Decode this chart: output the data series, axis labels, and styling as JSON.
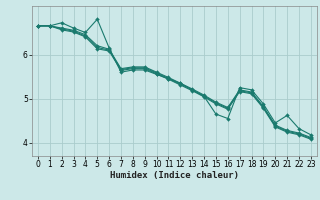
{
  "xlabel": "Humidex (Indice chaleur)",
  "ylabel": "",
  "background_color": "#cce8e8",
  "grid_color": "#aacccc",
  "line_color": "#1a7a6e",
  "xlim": [
    -0.5,
    23.5
  ],
  "ylim": [
    3.7,
    7.1
  ],
  "yticks": [
    4,
    5,
    6
  ],
  "xticks": [
    0,
    1,
    2,
    3,
    4,
    5,
    6,
    7,
    8,
    9,
    10,
    11,
    12,
    13,
    14,
    15,
    16,
    17,
    18,
    19,
    20,
    21,
    22,
    23
  ],
  "series": [
    [
      6.65,
      6.65,
      6.72,
      6.6,
      6.5,
      6.8,
      6.15,
      5.6,
      5.65,
      5.65,
      5.55,
      5.45,
      5.35,
      5.2,
      5.05,
      4.65,
      4.55,
      5.25,
      5.2,
      4.88,
      4.45,
      4.62,
      4.32,
      4.18
    ],
    [
      6.65,
      6.65,
      6.6,
      6.55,
      6.45,
      6.2,
      6.12,
      5.68,
      5.72,
      5.72,
      5.6,
      5.48,
      5.35,
      5.22,
      5.08,
      4.92,
      4.8,
      5.2,
      5.15,
      4.82,
      4.4,
      4.28,
      4.22,
      4.12
    ],
    [
      6.65,
      6.65,
      6.58,
      6.53,
      6.42,
      6.16,
      6.1,
      5.66,
      5.7,
      5.7,
      5.58,
      5.46,
      5.33,
      5.2,
      5.06,
      4.9,
      4.78,
      5.18,
      5.13,
      4.8,
      4.38,
      4.26,
      4.2,
      4.1
    ],
    [
      6.65,
      6.65,
      6.56,
      6.51,
      6.4,
      6.13,
      6.08,
      5.64,
      5.68,
      5.68,
      5.56,
      5.44,
      5.31,
      5.18,
      5.04,
      4.88,
      4.76,
      5.16,
      5.11,
      4.78,
      4.36,
      4.24,
      4.18,
      4.08
    ]
  ],
  "figsize": [
    3.2,
    2.0
  ],
  "dpi": 100
}
